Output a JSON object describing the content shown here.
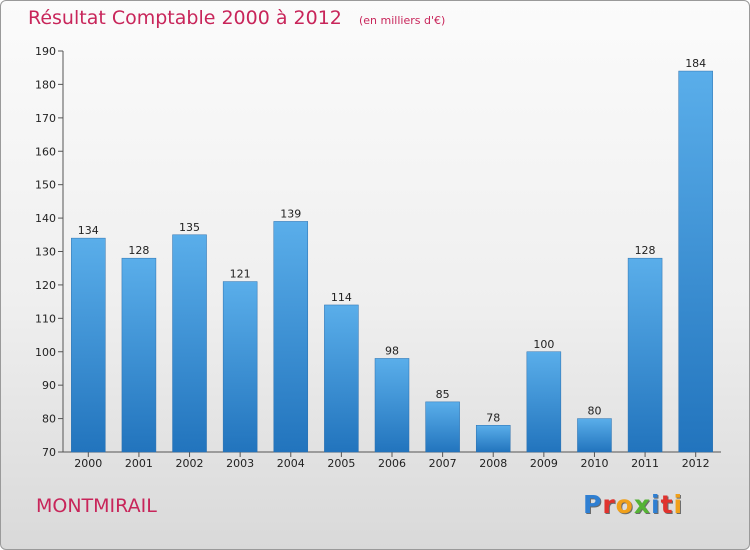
{
  "title": "Résultat Comptable 2000 à 2012",
  "subtitle": "(en milliers d'€)",
  "commune": "MONTMIRAIL",
  "logo": {
    "letters": [
      {
        "char": "P",
        "color": "#2f7fd2"
      },
      {
        "char": "r",
        "color": "#e0332e"
      },
      {
        "char": "o",
        "color": "#f0a01a"
      },
      {
        "char": "x",
        "color": "#55b335"
      },
      {
        "char": "i",
        "color": "#2f7fd2"
      },
      {
        "char": "t",
        "color": "#e0332e"
      },
      {
        "char": "i",
        "color": "#f0a01a"
      }
    ]
  },
  "chart_data": {
    "type": "bar",
    "categories": [
      "2000",
      "2001",
      "2002",
      "2003",
      "2004",
      "2005",
      "2006",
      "2007",
      "2008",
      "2009",
      "2010",
      "2011",
      "2012"
    ],
    "values": [
      134,
      128,
      135,
      121,
      139,
      114,
      98,
      85,
      78,
      100,
      80,
      128,
      184
    ],
    "ylim": [
      70,
      190
    ],
    "yticks": [
      70,
      80,
      90,
      100,
      110,
      120,
      130,
      140,
      150,
      160,
      170,
      180,
      190
    ],
    "grid": false,
    "bar_color": "#3a95de"
  }
}
